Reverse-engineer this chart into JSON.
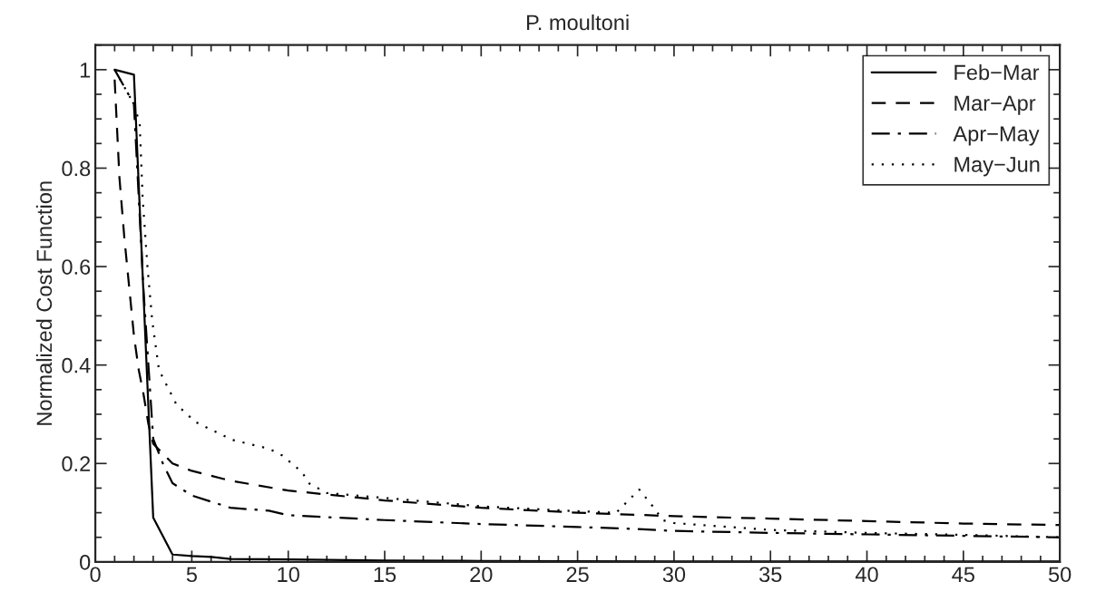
{
  "chart_data": {
    "type": "line",
    "title": "P. moultoni",
    "ylabel": "Normalized Cost Function",
    "xlim": [
      0,
      50
    ],
    "xticks": [
      0,
      5,
      10,
      15,
      20,
      25,
      30,
      35,
      40,
      45,
      50
    ],
    "ylim": [
      0,
      1.05
    ],
    "yticks": [
      0,
      0.2,
      0.4,
      0.6,
      0.8,
      1
    ],
    "legend": "top right",
    "grid": false,
    "series": [
      {
        "name": "Feb−Mar",
        "color": "#000000",
        "line_style": "solid",
        "x": [
          1,
          2,
          3,
          4,
          5,
          6,
          7,
          10,
          15,
          20,
          30,
          50
        ],
        "values": [
          1.0,
          0.99,
          0.09,
          0.015,
          0.012,
          0.01,
          0.006,
          0.005,
          0.003,
          0.002,
          0.001,
          0.001
        ]
      },
      {
        "name": "Mar−Apr",
        "color": "#000000",
        "line_style": "dashed",
        "x": [
          1,
          1.25,
          1.5,
          1.75,
          2,
          2.25,
          2.5,
          2.75,
          3,
          3.5,
          4,
          5,
          7,
          10,
          15,
          20,
          25,
          30,
          35,
          40,
          45,
          50
        ],
        "values": [
          0.98,
          0.78,
          0.66,
          0.56,
          0.46,
          0.39,
          0.34,
          0.28,
          0.24,
          0.22,
          0.2,
          0.185,
          0.165,
          0.145,
          0.125,
          0.11,
          0.1,
          0.093,
          0.088,
          0.083,
          0.078,
          0.075
        ]
      },
      {
        "name": "Apr−May",
        "color": "#000000",
        "line_style": "dashdot",
        "x": [
          1,
          2,
          2.5,
          3,
          3.5,
          4,
          5,
          7,
          9,
          10,
          15,
          20,
          25,
          28,
          30,
          35,
          40,
          45,
          50
        ],
        "values": [
          1.0,
          0.93,
          0.55,
          0.25,
          0.2,
          0.16,
          0.135,
          0.11,
          0.104,
          0.095,
          0.085,
          0.077,
          0.071,
          0.067,
          0.063,
          0.059,
          0.056,
          0.053,
          0.05
        ]
      },
      {
        "name": "May−Jun",
        "color": "#000000",
        "line_style": "dotted",
        "x": [
          1,
          2,
          2.3,
          2.45,
          2.7,
          2.95,
          3.3,
          4.2,
          5.2,
          7.1,
          9,
          9.7,
          10.7,
          11.1,
          12,
          15,
          20,
          25,
          27,
          28.2,
          29,
          29.4,
          30,
          35,
          40,
          45,
          50
        ],
        "values": [
          1.0,
          0.93,
          0.89,
          0.74,
          0.6,
          0.49,
          0.39,
          0.32,
          0.284,
          0.248,
          0.23,
          0.216,
          0.183,
          0.159,
          0.14,
          0.13,
          0.113,
          0.103,
          0.1,
          0.147,
          0.108,
          0.085,
          0.079,
          0.065,
          0.059,
          0.055,
          0.05
        ]
      }
    ]
  }
}
